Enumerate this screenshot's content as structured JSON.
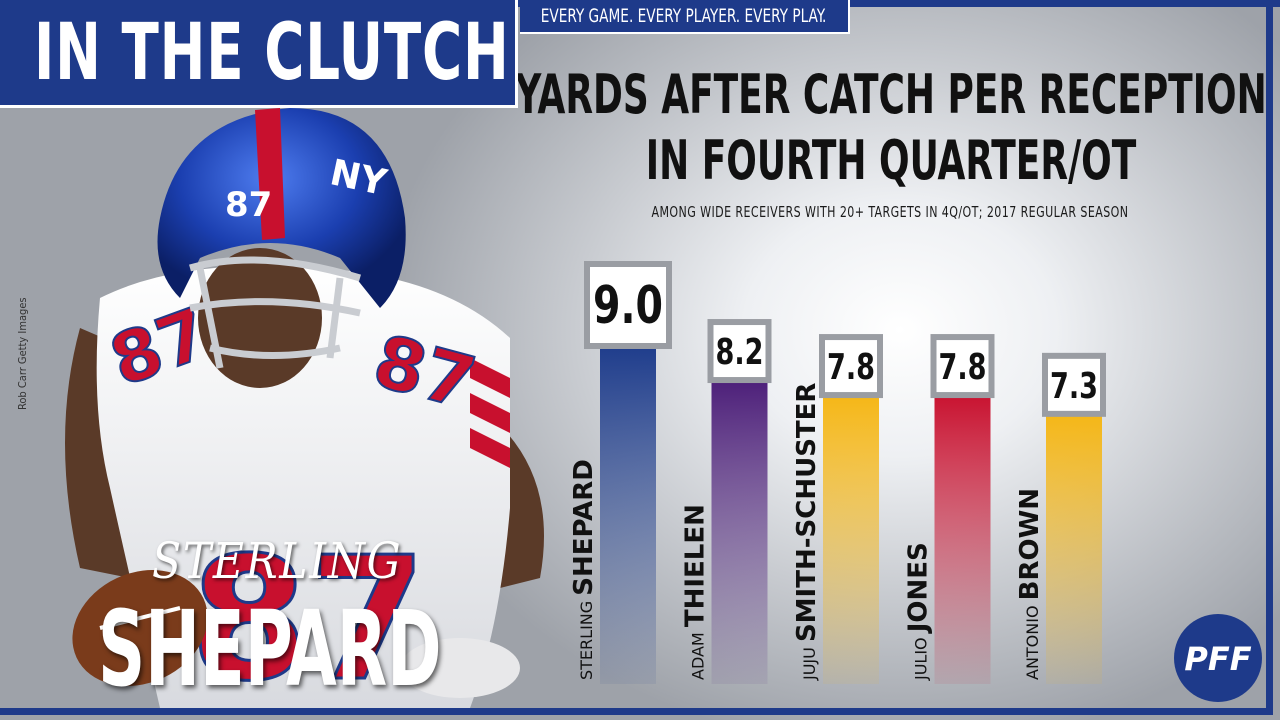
{
  "brand": {
    "series_name": "IN THE CLUTCH",
    "tagline": "EVERY GAME. EVERY PLAYER. EVERY PLAY.",
    "logo_text": "PFF",
    "primary_color": "#1e3a8a"
  },
  "player": {
    "first_name": "STERLING",
    "last_name": "SHEPARD",
    "photo_credit": "Rob Carr Getty Images"
  },
  "chart_data": {
    "type": "bar",
    "title": "YARDS AFTER CATCH PER RECEPTION IN FOURTH QUARTER/OT",
    "subtitle": "AMONG WIDE RECEIVERS WITH 20+ TARGETS IN 4Q/OT; 2017 REGULAR SEASON",
    "categories": [
      {
        "first": "STERLING",
        "last": "SHEPARD"
      },
      {
        "first": "ADAM",
        "last": "THIELEN"
      },
      {
        "first": "JUJU",
        "last": "SMITH-SCHUSTER"
      },
      {
        "first": "JULIO",
        "last": "JONES"
      },
      {
        "first": "ANTONIO",
        "last": "BROWN"
      }
    ],
    "values": [
      9.0,
      8.2,
      7.8,
      7.8,
      7.3
    ],
    "value_labels": [
      "9.0",
      "8.2",
      "7.8",
      "7.8",
      "7.3"
    ],
    "colors": [
      "#1f3d8c",
      "#4b1d78",
      "#f5b614",
      "#c8102e",
      "#f5b614"
    ],
    "ylim": [
      0,
      10
    ]
  }
}
